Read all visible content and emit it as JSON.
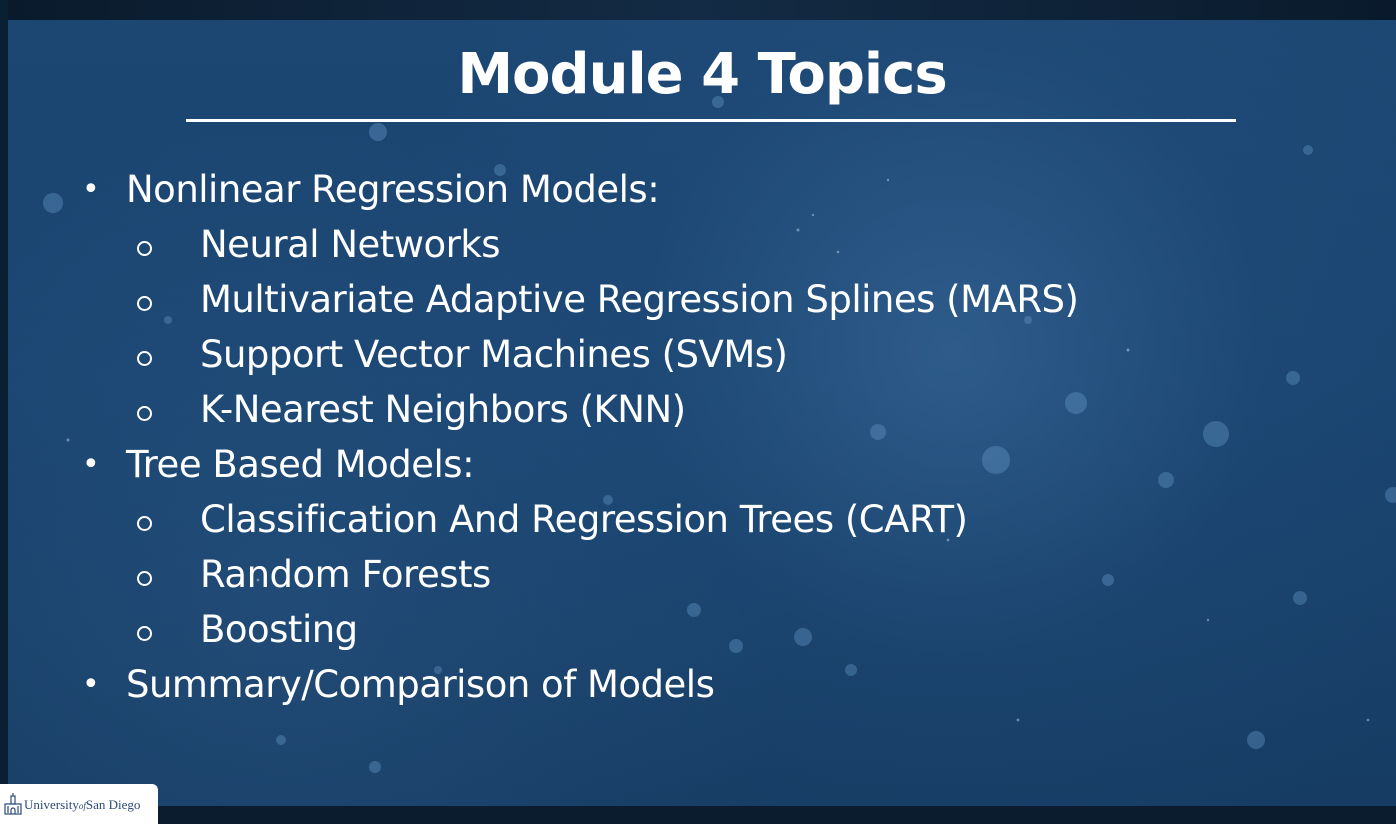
{
  "slide": {
    "title": "Module 4 Topics",
    "topics": [
      {
        "level": 1,
        "text": "Nonlinear Regression Models:"
      },
      {
        "level": 2,
        "text": "Neural Networks"
      },
      {
        "level": 2,
        "text": "Multivariate Adaptive Regression Splines (MARS)"
      },
      {
        "level": 2,
        "text": "Support Vector Machines (SVMs)"
      },
      {
        "level": 2,
        "text": "K-Nearest Neighbors (KNN)"
      },
      {
        "level": 1,
        "text": "Tree Based Models:"
      },
      {
        "level": 2,
        "text": "Classification And Regression Trees (CART)"
      },
      {
        "level": 2,
        "text": "Random Forests"
      },
      {
        "level": 2,
        "text": "Boosting"
      },
      {
        "level": 1,
        "text": "Summary/Comparison of Models"
      }
    ]
  },
  "logo": {
    "text_main": "University",
    "text_of": "of",
    "text_place": "San Diego",
    "icon": "university-building-icon"
  },
  "colors": {
    "background": "#1b4570",
    "text": "#ffffff",
    "logo_text": "#2c4a78"
  }
}
